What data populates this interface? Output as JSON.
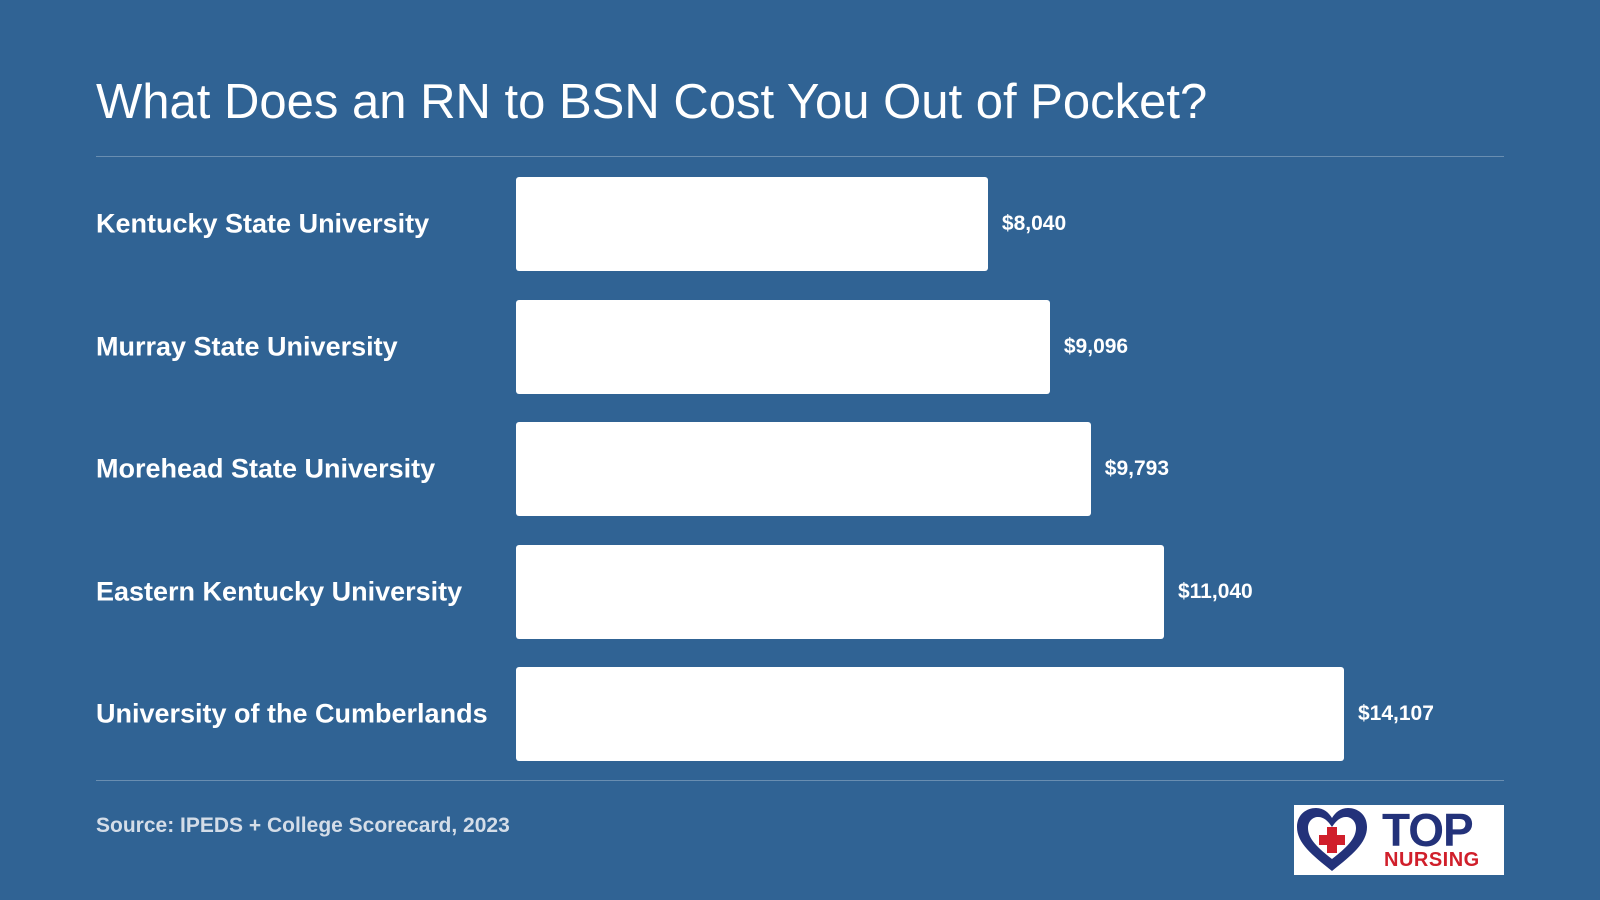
{
  "title": "What Does an RN to BSN Cost You Out of Pocket?",
  "source": "Source: IPEDS + College Scorecard, 2023",
  "logo": {
    "top_text": "TOP",
    "bottom_text": "NURSING",
    "colors": {
      "navy": "#23327a",
      "red": "#d01f2b"
    }
  },
  "colors": {
    "background": "#306394",
    "bar": "#ffffff",
    "text": "#ffffff"
  },
  "chart_data": {
    "type": "bar",
    "orientation": "horizontal",
    "categories": [
      "Kentucky State University",
      "Murray State University",
      "Morehead State University",
      "Eastern Kentucky University",
      "University of the Cumberlands"
    ],
    "values": [
      8040,
      9096,
      9793,
      11040,
      14107
    ],
    "value_labels": [
      "$8,040",
      "$9,096",
      "$9,793",
      "$11,040",
      "$14,107"
    ],
    "title": "What Does an RN to BSN Cost You Out of Pocket?",
    "grid": false
  }
}
